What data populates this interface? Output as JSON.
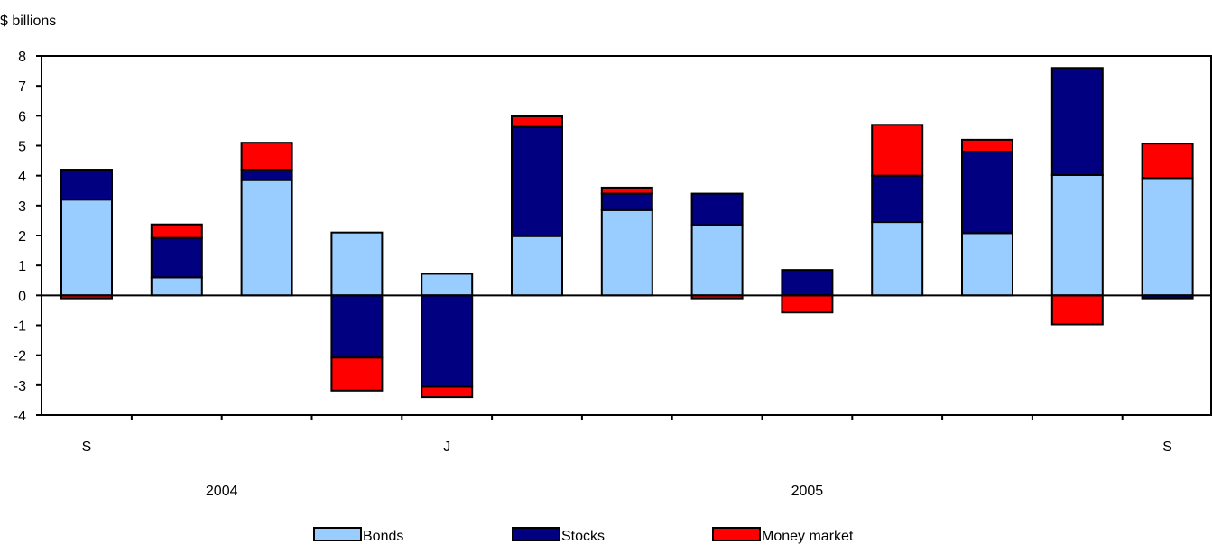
{
  "chart_data": {
    "type": "bar",
    "stacked": true,
    "ylabel": "$ billions",
    "ylim": [
      -4,
      8
    ],
    "yticks": [
      -4,
      -3,
      -2,
      -1,
      0,
      1,
      2,
      3,
      4,
      5,
      6,
      7,
      8
    ],
    "x_tick_labels": [
      "S",
      "",
      "",
      "",
      "J",
      "",
      "",
      "",
      "",
      "",
      "",
      "",
      "S"
    ],
    "year_labels": [
      {
        "label": "2004",
        "at_category": 1.5
      },
      {
        "label": "2005",
        "at_category": 8
      }
    ],
    "categories": [
      "Sep 2004",
      "Oct 2004",
      "Nov 2004",
      "Dec 2004",
      "Jan 2005",
      "Feb 2005",
      "Mar 2005",
      "Apr 2005",
      "May 2005",
      "Jun 2005",
      "Jul 2005",
      "Aug 2005",
      "Sep 2005"
    ],
    "series": [
      {
        "name": "Bonds",
        "color": "#99ccff",
        "values": [
          3.2,
          0.6,
          3.85,
          2.1,
          0.72,
          1.98,
          2.85,
          2.35,
          0.0,
          2.45,
          2.08,
          4.02,
          3.92
        ]
      },
      {
        "name": "Stocks",
        "color": "#000080",
        "values": [
          1.0,
          1.32,
          0.35,
          -2.08,
          -3.05,
          3.65,
          0.55,
          1.05,
          0.85,
          1.55,
          2.72,
          3.58,
          -0.1
        ]
      },
      {
        "name": "Money market",
        "color": "#ff0000",
        "values": [
          -0.1,
          0.45,
          0.9,
          -1.1,
          -0.35,
          0.35,
          0.2,
          -0.1,
          -0.57,
          1.7,
          0.4,
          -0.97,
          1.15
        ]
      }
    ],
    "legend_position": "bottom-center",
    "grid": false
  }
}
